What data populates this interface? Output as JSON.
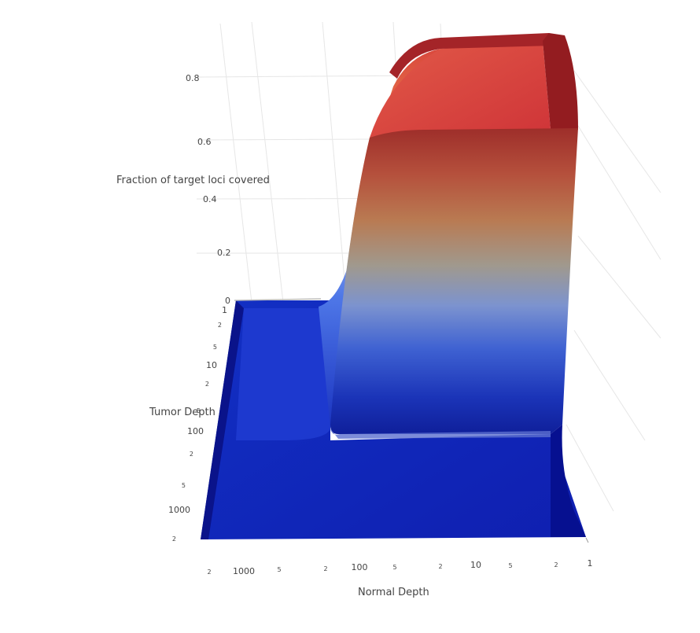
{
  "chart_data": {
    "type": "surface",
    "title": "",
    "zlabel": "Fraction of target loci covered",
    "ylabel": "Tumor Depth",
    "xlabel": "Normal Depth",
    "z_ticks": [
      "0",
      "0.2",
      "0.4",
      "0.6",
      "0.8"
    ],
    "z_range": [
      0,
      0.9
    ],
    "tumor_depth_ticks": [
      {
        "label": "1",
        "major": true
      },
      {
        "label": "2",
        "major": false
      },
      {
        "label": "5",
        "major": false
      },
      {
        "label": "10",
        "major": true
      },
      {
        "label": "2",
        "major": false
      },
      {
        "label": "5",
        "major": false
      },
      {
        "label": "100",
        "major": true
      },
      {
        "label": "2",
        "major": false
      },
      {
        "label": "5",
        "major": false
      },
      {
        "label": "1000",
        "major": true
      },
      {
        "label": "2",
        "major": false
      }
    ],
    "normal_depth_ticks": [
      {
        "label": "2",
        "major": false
      },
      {
        "label": "1000",
        "major": true
      },
      {
        "label": "5",
        "major": false
      },
      {
        "label": "2",
        "major": false
      },
      {
        "label": "100",
        "major": true
      },
      {
        "label": "5",
        "major": false
      },
      {
        "label": "2",
        "major": false
      },
      {
        "label": "10",
        "major": true
      },
      {
        "label": "5",
        "major": false
      },
      {
        "label": "2",
        "major": false
      },
      {
        "label": "1",
        "major": true
      }
    ],
    "log_axes": [
      "Tumor Depth",
      "Normal Depth"
    ],
    "colorscale": [
      "#0a1a9a",
      "#1d3fc4",
      "#4a6ed8",
      "#7f95cc",
      "#a89a88",
      "#c07850",
      "#d04a3e",
      "#a01c24"
    ],
    "surface_plateau_value": 0.88,
    "surface_floor_value": 0
  }
}
